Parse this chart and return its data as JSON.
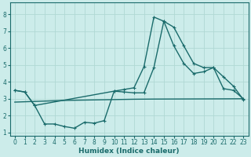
{
  "xlabel": "Humidex (Indice chaleur)",
  "bg_color": "#ccecea",
  "line_color": "#1a6b6b",
  "grid_color": "#b0d8d4",
  "xlim": [
    -0.5,
    23.5
  ],
  "ylim": [
    0.8,
    8.7
  ],
  "x_ticks": [
    0,
    1,
    2,
    3,
    4,
    5,
    6,
    7,
    8,
    9,
    10,
    11,
    12,
    13,
    14,
    15,
    16,
    17,
    18,
    19,
    20,
    21,
    22,
    23
  ],
  "y_ticks": [
    1,
    2,
    3,
    4,
    5,
    6,
    7,
    8
  ],
  "line1_x": [
    0,
    1,
    2,
    10,
    11,
    12,
    13,
    14,
    15,
    16,
    17,
    18,
    19,
    20,
    21,
    22,
    23
  ],
  "line1_y": [
    3.5,
    3.4,
    2.6,
    3.45,
    3.55,
    3.65,
    4.9,
    7.85,
    7.6,
    6.15,
    5.1,
    4.5,
    4.6,
    4.85,
    3.6,
    3.5,
    3.0
  ],
  "line2_x": [
    0,
    1,
    2,
    3,
    4,
    5,
    6,
    7,
    8,
    9,
    10,
    11,
    12,
    13,
    14,
    15,
    16,
    17,
    18,
    19,
    20,
    21,
    22,
    23
  ],
  "line2_y": [
    3.5,
    3.4,
    2.6,
    1.5,
    1.5,
    1.35,
    1.25,
    1.6,
    1.55,
    1.7,
    3.45,
    3.4,
    3.35,
    3.35,
    4.85,
    7.6,
    7.25,
    6.15,
    5.1,
    4.85,
    4.85,
    4.3,
    3.75,
    2.95
  ],
  "line3_x": [
    0,
    1,
    2,
    3,
    4,
    5,
    6,
    7,
    8,
    9,
    10,
    11,
    12,
    13,
    14,
    15,
    16,
    17,
    18,
    19,
    20,
    21,
    22,
    23
  ],
  "line3_y": [
    2.8,
    2.82,
    2.84,
    2.86,
    2.88,
    2.9,
    2.91,
    2.92,
    2.93,
    2.94,
    2.95,
    2.96,
    2.97,
    2.975,
    2.98,
    2.982,
    2.984,
    2.986,
    2.988,
    2.99,
    2.992,
    2.994,
    2.997,
    3.0
  ]
}
